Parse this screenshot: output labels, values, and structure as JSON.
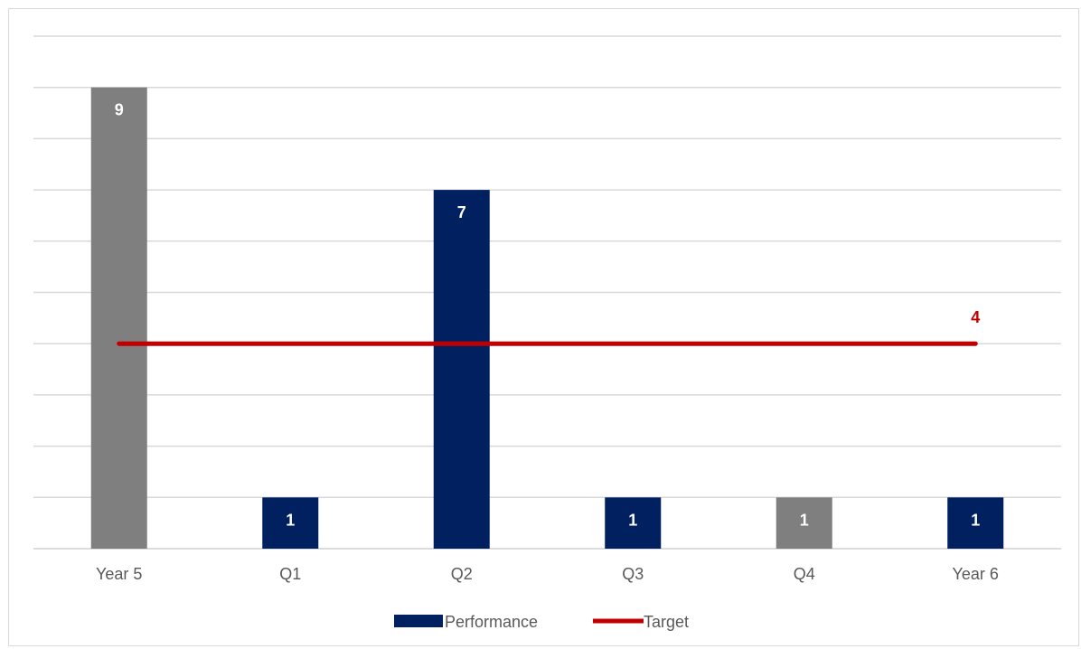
{
  "chart_data": {
    "type": "bar",
    "title": "",
    "xlabel": "",
    "ylabel": "",
    "ylim": [
      0,
      10
    ],
    "grid": true,
    "legend_position": "bottom",
    "categories": [
      "Year 5",
      "Q1",
      "Q2",
      "Q3",
      "Q4",
      "Year 6"
    ],
    "series": [
      {
        "name": "Performance",
        "kind": "bar",
        "values": [
          9,
          1,
          7,
          1,
          1,
          1
        ],
        "labels": [
          "9",
          "1",
          "7",
          "1",
          "1",
          "1"
        ],
        "colors": [
          "#7f7f7f",
          "#002060",
          "#002060",
          "#002060",
          "#7f7f7f",
          "#002060"
        ],
        "legend_color": "#002060"
      },
      {
        "name": "Target",
        "kind": "line",
        "value": 4,
        "label": "4",
        "color": "#c00000"
      }
    ]
  }
}
